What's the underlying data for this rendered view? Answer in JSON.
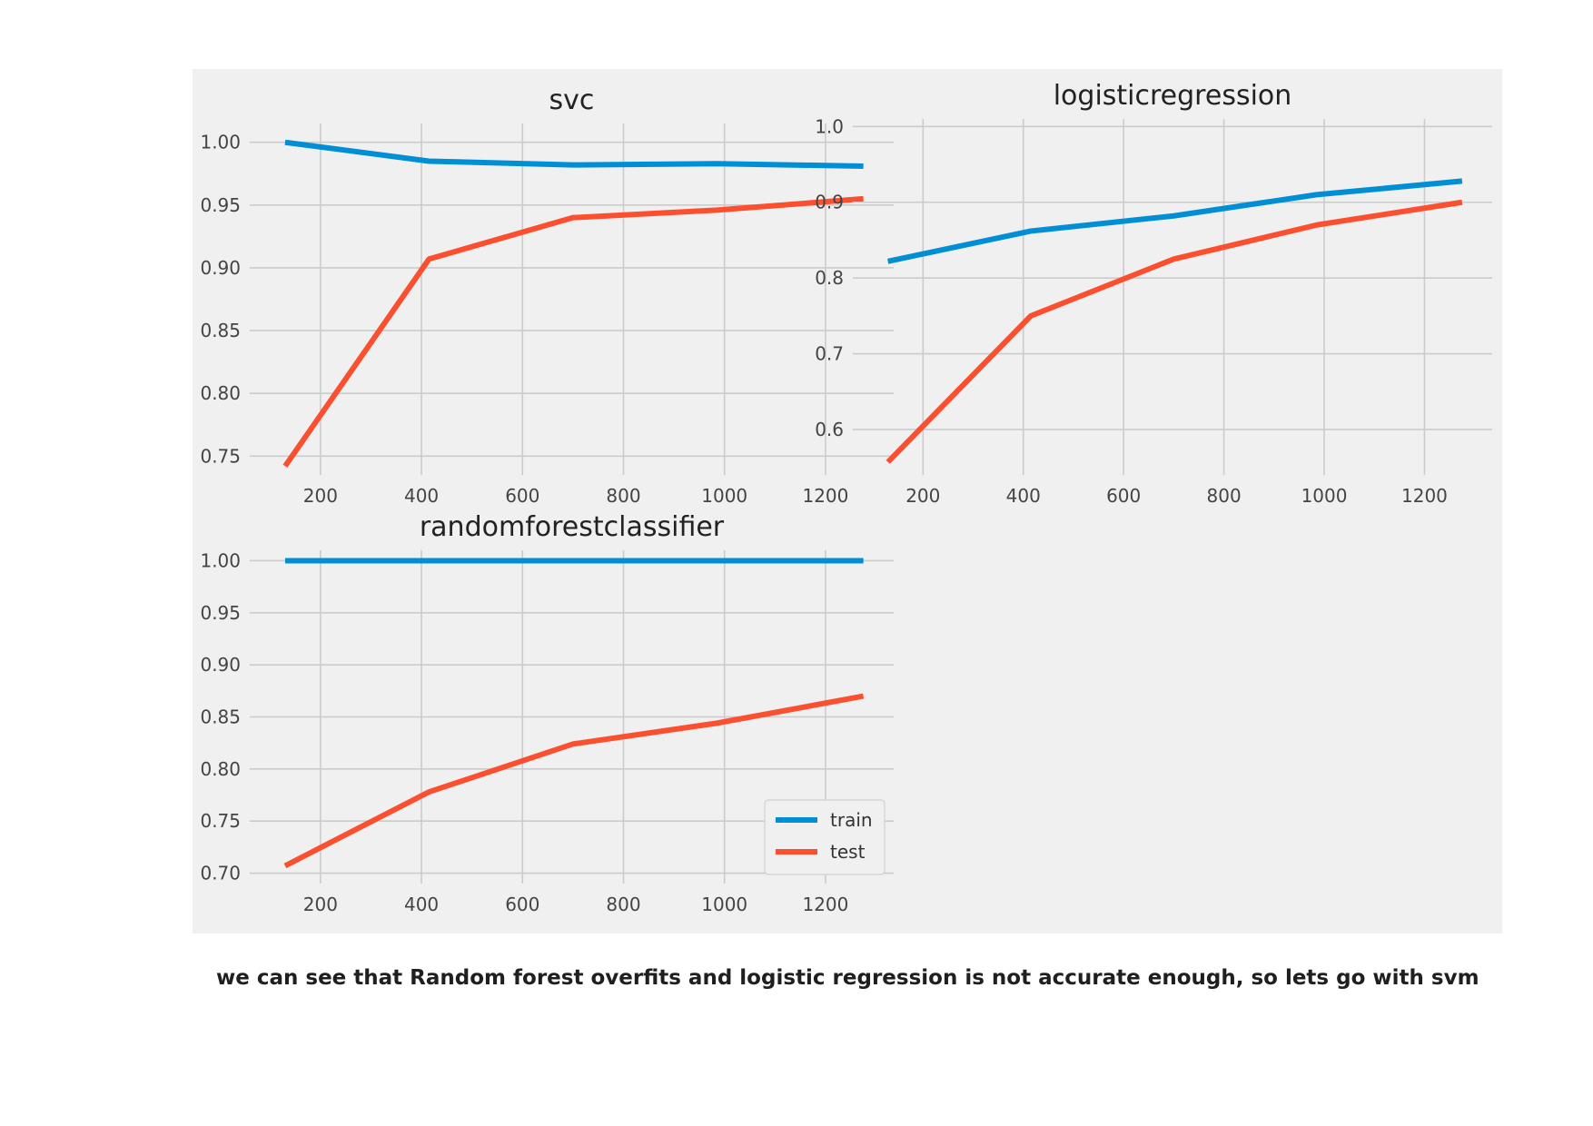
{
  "chart_data": [
    {
      "type": "line",
      "title": "svc",
      "x": [
        130,
        415,
        700,
        985,
        1275
      ],
      "xticks": [
        200,
        400,
        600,
        800,
        1000,
        1200
      ],
      "xlim": [
        60,
        1335
      ],
      "ylim": [
        0.735,
        1.015
      ],
      "yticks": [
        0.75,
        0.8,
        0.85,
        0.9,
        0.95,
        1.0
      ],
      "ytick_labels": [
        "0.75",
        "0.80",
        "0.85",
        "0.90",
        "0.95",
        "1.00"
      ],
      "grid": true,
      "series": [
        {
          "name": "train",
          "color": "#008fd5",
          "values": [
            1.0,
            0.985,
            0.982,
            0.983,
            0.981
          ]
        },
        {
          "name": "test",
          "color": "#fc4f30",
          "values": [
            0.742,
            0.907,
            0.94,
            0.946,
            0.955
          ]
        }
      ]
    },
    {
      "type": "line",
      "title": "logisticregression",
      "x": [
        130,
        415,
        700,
        985,
        1275
      ],
      "xticks": [
        200,
        400,
        600,
        800,
        1000,
        1200
      ],
      "xlim": [
        60,
        1335
      ],
      "ylim": [
        0.54,
        1.01
      ],
      "yticks": [
        0.6,
        0.7,
        0.8,
        0.9,
        1.0
      ],
      "ytick_labels": [
        "0.6",
        "0.7",
        "0.8",
        "0.9",
        "1.0"
      ],
      "grid": true,
      "series": [
        {
          "name": "train",
          "color": "#008fd5",
          "values": [
            0.822,
            0.862,
            0.882,
            0.91,
            0.928
          ]
        },
        {
          "name": "test",
          "color": "#fc4f30",
          "values": [
            0.557,
            0.75,
            0.825,
            0.87,
            0.9
          ]
        }
      ]
    },
    {
      "type": "line",
      "title": "randomforestclassifier",
      "x": [
        130,
        415,
        700,
        985,
        1275
      ],
      "xticks": [
        200,
        400,
        600,
        800,
        1000,
        1200
      ],
      "xlim": [
        60,
        1335
      ],
      "ylim": [
        0.69,
        1.01
      ],
      "yticks": [
        0.7,
        0.75,
        0.8,
        0.85,
        0.9,
        0.95,
        1.0
      ],
      "ytick_labels": [
        "0.70",
        "0.75",
        "0.80",
        "0.85",
        "0.90",
        "0.95",
        "1.00"
      ],
      "grid": true,
      "legend": "lower-right",
      "series": [
        {
          "name": "train",
          "color": "#008fd5",
          "values": [
            1.0,
            1.0,
            1.0,
            1.0,
            1.0
          ]
        },
        {
          "name": "test",
          "color": "#fc4f30",
          "values": [
            0.707,
            0.778,
            0.824,
            0.844,
            0.87
          ]
        }
      ]
    }
  ],
  "caption": "we can see that Random forest overfits and logistic regression is not accurate enough, so lets go with svm"
}
